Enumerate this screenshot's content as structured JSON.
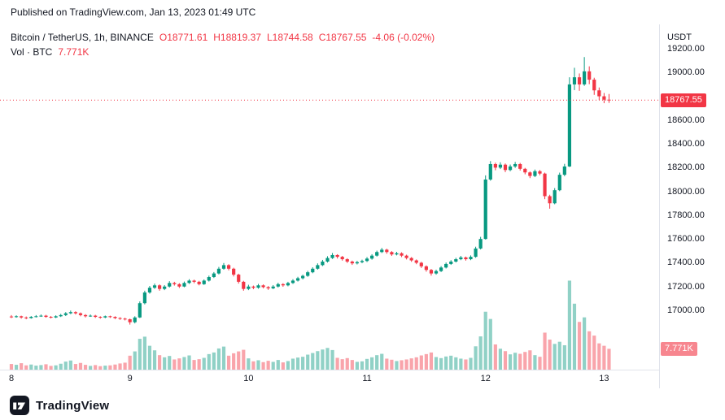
{
  "published_line": "Published on TradingView.com, Jan 13, 2023 01:49 UTC",
  "header": {
    "symbol": "Bitcoin / TetherUS, 1h, BINANCE",
    "open": "O18771.61",
    "high": "H18819.37",
    "low": "L18744.58",
    "close": "C18767.55",
    "change": "-4.06 (-0.02%)",
    "vol_label": "Vol · BTC",
    "vol_value": "7.771K"
  },
  "axis": {
    "currency": "USDT",
    "price_ticks": [
      19200,
      19000,
      18600,
      18400,
      18200,
      18000,
      17800,
      17600,
      17400,
      17200,
      17000
    ],
    "last_price_label": "18767.55",
    "volume_badge_label": "7.771K",
    "time_ticks": [
      {
        "index": 0,
        "label": "8"
      },
      {
        "index": 24,
        "label": "9"
      },
      {
        "index": 48,
        "label": "10"
      },
      {
        "index": 72,
        "label": "11"
      },
      {
        "index": 96,
        "label": "12"
      },
      {
        "index": 120,
        "label": "13"
      }
    ]
  },
  "footer": {
    "brand": "TradingView"
  },
  "colors": {
    "up": "#089981",
    "down": "#f23645",
    "vol_up": "rgba(8,153,129,0.45)",
    "vol_down": "rgba(242,54,69,0.45)",
    "text": "#131722",
    "down_soft": "rgba(242,54,69,0.6)"
  },
  "chart_data": {
    "type": "candlestick_with_volume",
    "title": "Bitcoin / TetherUS, 1h, BINANCE",
    "interval": "1h",
    "ylabel": "USDT",
    "x_axis_days": [
      8,
      9,
      10,
      11,
      12,
      13
    ],
    "y_axis_range": [
      16850,
      19350
    ],
    "last_price": 18767.55,
    "last_volume_btc_k": 7.771,
    "ohlcv_order": [
      "open",
      "high",
      "low",
      "close",
      "volume_k_btc"
    ],
    "candles_ohlcv": [
      [
        16948,
        16960,
        16935,
        16945,
        2.1
      ],
      [
        16945,
        16958,
        16938,
        16950,
        1.8
      ],
      [
        16950,
        16955,
        16930,
        16940,
        2.4
      ],
      [
        16940,
        16948,
        16925,
        16935,
        1.6
      ],
      [
        16935,
        16952,
        16930,
        16945,
        1.9
      ],
      [
        16945,
        16960,
        16940,
        16950,
        1.5
      ],
      [
        16950,
        16965,
        16945,
        16955,
        1.7
      ],
      [
        16955,
        16962,
        16938,
        16945,
        2.0
      ],
      [
        16945,
        16952,
        16932,
        16940,
        1.4
      ],
      [
        16940,
        16958,
        16935,
        16950,
        1.6
      ],
      [
        16950,
        16970,
        16944,
        16960,
        2.2
      ],
      [
        16960,
        16985,
        16952,
        16975,
        3.0
      ],
      [
        16975,
        16998,
        16968,
        16985,
        3.4
      ],
      [
        16985,
        16992,
        16965,
        16975,
        2.1
      ],
      [
        16975,
        16982,
        16950,
        16960,
        2.5
      ],
      [
        16960,
        16968,
        16940,
        16950,
        1.8
      ],
      [
        16950,
        16965,
        16945,
        16955,
        1.4
      ],
      [
        16955,
        16962,
        16936,
        16945,
        1.7
      ],
      [
        16945,
        16950,
        16930,
        16940,
        1.3
      ],
      [
        16940,
        16956,
        16934,
        16950,
        1.5
      ],
      [
        16950,
        16955,
        16936,
        16945,
        1.6
      ],
      [
        16945,
        16950,
        16926,
        16935,
        1.9
      ],
      [
        16935,
        16942,
        16920,
        16930,
        2.3
      ],
      [
        16930,
        16938,
        16915,
        16925,
        2.6
      ],
      [
        16925,
        16930,
        16880,
        16900,
        5.2
      ],
      [
        16900,
        16950,
        16890,
        16940,
        6.8
      ],
      [
        16940,
        17075,
        16935,
        17060,
        11.5
      ],
      [
        17060,
        17165,
        17050,
        17150,
        12.3
      ],
      [
        17150,
        17205,
        17140,
        17190,
        8.9
      ],
      [
        17190,
        17225,
        17180,
        17210,
        7.2
      ],
      [
        17210,
        17218,
        17165,
        17180,
        5.4
      ],
      [
        17180,
        17212,
        17170,
        17200,
        4.6
      ],
      [
        17200,
        17245,
        17192,
        17230,
        5.1
      ],
      [
        17230,
        17240,
        17208,
        17220,
        3.8
      ],
      [
        17220,
        17228,
        17188,
        17200,
        4.2
      ],
      [
        17200,
        17242,
        17194,
        17230,
        4.7
      ],
      [
        17230,
        17262,
        17222,
        17250,
        5.3
      ],
      [
        17250,
        17258,
        17228,
        17240,
        3.6
      ],
      [
        17240,
        17248,
        17210,
        17220,
        3.9
      ],
      [
        17220,
        17260,
        17214,
        17250,
        4.4
      ],
      [
        17250,
        17292,
        17242,
        17280,
        5.8
      ],
      [
        17280,
        17322,
        17272,
        17310,
        6.4
      ],
      [
        17310,
        17365,
        17302,
        17350,
        7.9
      ],
      [
        17350,
        17398,
        17342,
        17380,
        8.6
      ],
      [
        17380,
        17388,
        17336,
        17350,
        5.2
      ],
      [
        17350,
        17358,
        17285,
        17300,
        6.1
      ],
      [
        17300,
        17308,
        17225,
        17240,
        6.8
      ],
      [
        17240,
        17248,
        17165,
        17180,
        7.4
      ],
      [
        17180,
        17215,
        17170,
        17200,
        4.2
      ],
      [
        17200,
        17208,
        17178,
        17190,
        3.1
      ],
      [
        17190,
        17222,
        17182,
        17210,
        3.5
      ],
      [
        17210,
        17218,
        17185,
        17195,
        2.8
      ],
      [
        17195,
        17204,
        17172,
        17185,
        3.3
      ],
      [
        17185,
        17212,
        17178,
        17200,
        2.9
      ],
      [
        17200,
        17232,
        17192,
        17220,
        3.6
      ],
      [
        17220,
        17228,
        17198,
        17210,
        2.7
      ],
      [
        17210,
        17240,
        17202,
        17230,
        3.2
      ],
      [
        17230,
        17262,
        17222,
        17250,
        4.1
      ],
      [
        17250,
        17282,
        17242,
        17270,
        4.5
      ],
      [
        17270,
        17300,
        17260,
        17290,
        4.8
      ],
      [
        17290,
        17332,
        17282,
        17320,
        5.6
      ],
      [
        17320,
        17362,
        17312,
        17350,
        6.2
      ],
      [
        17350,
        17395,
        17342,
        17380,
        6.9
      ],
      [
        17380,
        17424,
        17372,
        17410,
        7.5
      ],
      [
        17410,
        17455,
        17402,
        17440,
        8.1
      ],
      [
        17440,
        17482,
        17432,
        17465,
        7.3
      ],
      [
        17465,
        17472,
        17436,
        17450,
        4.4
      ],
      [
        17450,
        17458,
        17418,
        17430,
        3.9
      ],
      [
        17430,
        17438,
        17398,
        17410,
        4.3
      ],
      [
        17410,
        17418,
        17382,
        17395,
        3.6
      ],
      [
        17395,
        17416,
        17386,
        17405,
        2.9
      ],
      [
        17405,
        17426,
        17396,
        17415,
        3.1
      ],
      [
        17415,
        17448,
        17406,
        17435,
        4.0
      ],
      [
        17435,
        17472,
        17426,
        17460,
        4.6
      ],
      [
        17460,
        17502,
        17452,
        17490,
        5.4
      ],
      [
        17490,
        17525,
        17482,
        17510,
        5.9
      ],
      [
        17510,
        17518,
        17476,
        17490,
        4.1
      ],
      [
        17490,
        17498,
        17458,
        17470,
        3.7
      ],
      [
        17470,
        17492,
        17462,
        17480,
        3.2
      ],
      [
        17480,
        17488,
        17448,
        17460,
        3.5
      ],
      [
        17460,
        17468,
        17428,
        17440,
        3.8
      ],
      [
        17440,
        17448,
        17408,
        17420,
        4.2
      ],
      [
        17420,
        17428,
        17388,
        17400,
        4.6
      ],
      [
        17400,
        17408,
        17356,
        17370,
        5.3
      ],
      [
        17370,
        17378,
        17325,
        17340,
        5.8
      ],
      [
        17340,
        17348,
        17292,
        17310,
        6.4
      ],
      [
        17310,
        17342,
        17300,
        17330,
        4.7
      ],
      [
        17330,
        17372,
        17322,
        17360,
        4.3
      ],
      [
        17360,
        17402,
        17352,
        17390,
        4.9
      ],
      [
        17390,
        17422,
        17382,
        17410,
        5.2
      ],
      [
        17410,
        17442,
        17402,
        17430,
        4.6
      ],
      [
        17430,
        17458,
        17422,
        17445,
        4.1
      ],
      [
        17445,
        17452,
        17418,
        17430,
        3.8
      ],
      [
        17430,
        17462,
        17422,
        17450,
        4.4
      ],
      [
        17450,
        17535,
        17442,
        17520,
        8.7
      ],
      [
        17520,
        17618,
        17512,
        17600,
        12.4
      ],
      [
        17600,
        18135,
        17595,
        18100,
        21.6
      ],
      [
        18100,
        18255,
        18090,
        18230,
        18.9
      ],
      [
        18230,
        18242,
        18178,
        18200,
        9.4
      ],
      [
        18200,
        18245,
        18188,
        18225,
        7.8
      ],
      [
        18225,
        18235,
        18162,
        18180,
        6.9
      ],
      [
        18180,
        18226,
        18170,
        18210,
        5.7
      ],
      [
        18210,
        18248,
        18198,
        18230,
        6.3
      ],
      [
        18230,
        18240,
        18176,
        18190,
        5.9
      ],
      [
        18190,
        18198,
        18144,
        18160,
        6.6
      ],
      [
        18160,
        18168,
        18112,
        18130,
        7.2
      ],
      [
        18130,
        18184,
        18120,
        18170,
        5.4
      ],
      [
        18170,
        18180,
        18136,
        18150,
        4.8
      ],
      [
        18150,
        18158,
        17935,
        17960,
        13.8
      ],
      [
        17960,
        17972,
        17855,
        17900,
        11.2
      ],
      [
        17900,
        18028,
        17892,
        18010,
        9.6
      ],
      [
        18010,
        18158,
        18002,
        18140,
        10.4
      ],
      [
        18140,
        18232,
        18128,
        18210,
        9.1
      ],
      [
        18210,
        18960,
        18205,
        18900,
        33.2
      ],
      [
        18900,
        19040,
        18852,
        18960,
        24.6
      ],
      [
        18960,
        18992,
        18846,
        18900,
        17.8
      ],
      [
        18900,
        19130,
        18888,
        19010,
        19.5
      ],
      [
        19010,
        19052,
        18902,
        18940,
        14.3
      ],
      [
        18940,
        18956,
        18812,
        18850,
        12.7
      ],
      [
        18850,
        18874,
        18768,
        18800,
        9.8
      ],
      [
        18800,
        18828,
        18742,
        18771.61,
        8.9
      ],
      [
        18771.61,
        18819.37,
        18744.58,
        18767.55,
        7.771
      ]
    ]
  }
}
